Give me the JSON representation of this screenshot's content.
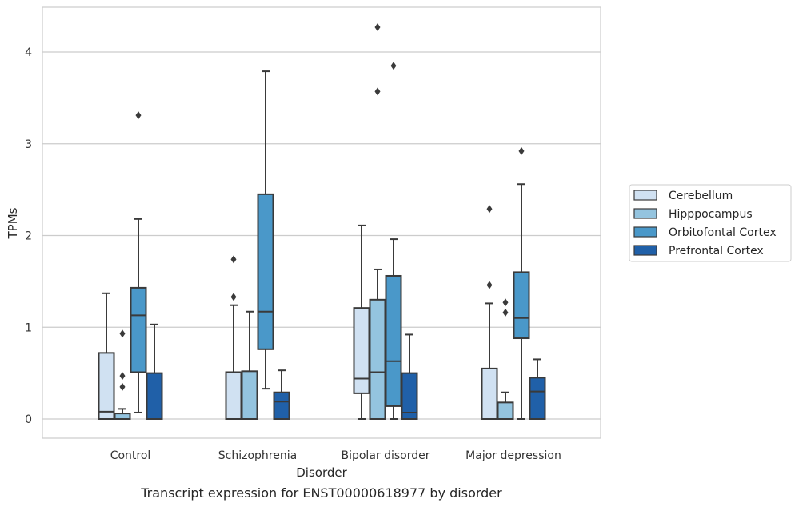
{
  "chart_data": {
    "type": "box",
    "title": "",
    "caption": "Transcript expression for ENST00000618977 by disorder",
    "xlabel": "Disorder",
    "ylabel": "TPMs",
    "ylim": [
      -0.2,
      4.5
    ],
    "yticks": [
      0,
      1,
      2,
      3,
      4
    ],
    "grid": "horizontal",
    "legend_position": "right",
    "categories": [
      "Control",
      "Schizophrenia",
      "Bipolar disorder",
      "Major depression"
    ],
    "series": [
      {
        "name": "Cerebellum",
        "color": "#d0e1f2",
        "boxes": [
          {
            "whislo": 0,
            "q1": 0,
            "med": 0.08,
            "q3": 0.72,
            "whishi": 1.37,
            "fliers": []
          },
          {
            "whislo": 0,
            "q1": 0,
            "med": 0,
            "q3": 0.51,
            "whishi": 1.24,
            "fliers": [
              1.33,
              1.74
            ]
          },
          {
            "whislo": 0,
            "q1": 0.28,
            "med": 0.44,
            "q3": 1.21,
            "whishi": 2.11,
            "fliers": []
          },
          {
            "whislo": 0,
            "q1": 0,
            "med": 0,
            "q3": 0.55,
            "whishi": 1.26,
            "fliers": [
              1.46,
              2.29
            ]
          }
        ]
      },
      {
        "name": "Hipppocampus",
        "color": "#94c4df",
        "boxes": [
          {
            "whislo": 0,
            "q1": 0,
            "med": 0,
            "q3": 0.06,
            "whishi": 0.11,
            "fliers": [
              0.35,
              0.47,
              0.93
            ]
          },
          {
            "whislo": 0,
            "q1": 0,
            "med": 0,
            "q3": 0.52,
            "whishi": 1.17,
            "fliers": []
          },
          {
            "whislo": 0,
            "q1": 0,
            "med": 0.51,
            "q3": 1.3,
            "whishi": 1.63,
            "fliers": [
              3.57,
              4.27
            ]
          },
          {
            "whislo": 0,
            "q1": 0,
            "med": 0,
            "q3": 0.18,
            "whishi": 0.29,
            "fliers": [
              1.16,
              1.27
            ]
          }
        ]
      },
      {
        "name": "Orbitofontal Cortex",
        "color": "#4a98c9",
        "boxes": [
          {
            "whislo": 0.07,
            "q1": 0.51,
            "med": 1.13,
            "q3": 1.43,
            "whishi": 2.18,
            "fliers": [
              3.31
            ]
          },
          {
            "whislo": 0.33,
            "q1": 0.76,
            "med": 1.17,
            "q3": 2.45,
            "whishi": 3.79,
            "fliers": []
          },
          {
            "whislo": 0,
            "q1": 0.14,
            "med": 0.63,
            "q3": 1.56,
            "whishi": 1.96,
            "fliers": [
              3.85
            ]
          },
          {
            "whislo": 0,
            "q1": 0.88,
            "med": 1.1,
            "q3": 1.6,
            "whishi": 2.56,
            "fliers": [
              2.92
            ]
          }
        ]
      },
      {
        "name": "Prefrontal Cortex",
        "color": "#2060a8",
        "boxes": [
          {
            "whislo": 0,
            "q1": 0,
            "med": 0,
            "q3": 0.5,
            "whishi": 1.03,
            "fliers": []
          },
          {
            "whislo": 0,
            "q1": 0,
            "med": 0.19,
            "q3": 0.29,
            "whishi": 0.53,
            "fliers": []
          },
          {
            "whislo": 0,
            "q1": 0,
            "med": 0.07,
            "q3": 0.5,
            "whishi": 0.92,
            "fliers": []
          },
          {
            "whislo": 0,
            "q1": 0,
            "med": 0.3,
            "q3": 0.45,
            "whishi": 0.65,
            "fliers": []
          }
        ]
      }
    ]
  }
}
